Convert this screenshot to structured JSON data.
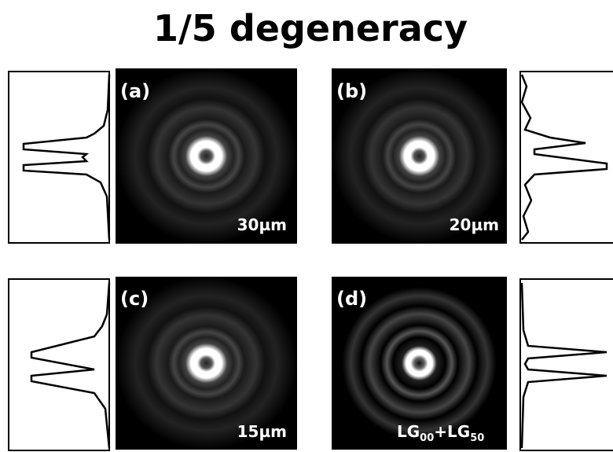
{
  "figure": {
    "title": "1/5 degeneracy",
    "panels": [
      {
        "label": "(a)",
        "scale": "30µm"
      },
      {
        "label": "(b)",
        "scale": "20µm"
      },
      {
        "label": "(c)",
        "scale": "15µm"
      },
      {
        "label": "(d)",
        "scale_parts": [
          {
            "text": "LG",
            "sub": "00"
          },
          {
            "text": "+LG",
            "sub": "50"
          }
        ]
      }
    ]
  }
}
